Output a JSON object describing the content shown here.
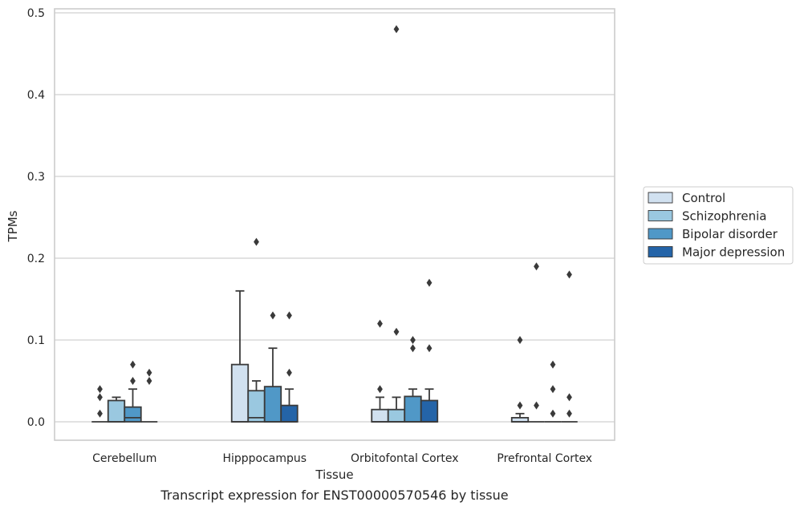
{
  "chart_data": {
    "type": "box",
    "caption": "Transcript expression for ENST00000570546 by tissue",
    "xlabel": "Tissue",
    "ylabel": "TPMs",
    "ylim": [
      -0.023,
      0.505
    ],
    "yticks": [
      0.0,
      0.1,
      0.2,
      0.3,
      0.4,
      0.5
    ],
    "ytick_labels": [
      "0.0",
      "0.1",
      "0.2",
      "0.3",
      "0.4",
      "0.5"
    ],
    "grid": "horizontal",
    "legend_position": "right",
    "categories": [
      "Cerebellum",
      "Hipppocampus",
      "Orbitofontal Cortex",
      "Prefrontal Cortex"
    ],
    "series": [
      {
        "name": "Control",
        "color": "#d1e1f0",
        "boxes": [
          {
            "q1": 0,
            "median": 0,
            "q3": 0,
            "whisker_low": 0,
            "whisker_high": 0,
            "outliers": [
              0.01,
              0.03,
              0.04
            ]
          },
          {
            "q1": 0,
            "median": 0,
            "q3": 0.07,
            "whisker_low": 0,
            "whisker_high": 0.16,
            "outliers": []
          },
          {
            "q1": 0,
            "median": 0,
            "q3": 0.015,
            "whisker_low": 0,
            "whisker_high": 0.03,
            "outliers": [
              0.04,
              0.12
            ]
          },
          {
            "q1": 0,
            "median": 0,
            "q3": 0.005,
            "whisker_low": 0,
            "whisker_high": 0.01,
            "outliers": [
              0.02,
              0.1
            ]
          }
        ]
      },
      {
        "name": "Schizophrenia",
        "color": "#9ac8e0",
        "boxes": [
          {
            "q1": 0,
            "median": 0,
            "q3": 0.026,
            "whisker_low": 0,
            "whisker_high": 0.03,
            "outliers": []
          },
          {
            "q1": 0,
            "median": 0.005,
            "q3": 0.038,
            "whisker_low": 0,
            "whisker_high": 0.05,
            "outliers": [
              0.22
            ]
          },
          {
            "q1": 0,
            "median": 0,
            "q3": 0.015,
            "whisker_low": 0,
            "whisker_high": 0.03,
            "outliers": [
              0.11,
              0.48
            ]
          },
          {
            "q1": 0,
            "median": 0,
            "q3": 0,
            "whisker_low": 0,
            "whisker_high": 0,
            "outliers": [
              0.02,
              0.19
            ]
          }
        ]
      },
      {
        "name": "Bipolar disorder",
        "color": "#5098c7",
        "boxes": [
          {
            "q1": 0,
            "median": 0.005,
            "q3": 0.018,
            "whisker_low": 0,
            "whisker_high": 0.04,
            "outliers": [
              0.05,
              0.07
            ]
          },
          {
            "q1": 0,
            "median": 0,
            "q3": 0.043,
            "whisker_low": 0,
            "whisker_high": 0.09,
            "outliers": [
              0.13
            ]
          },
          {
            "q1": 0,
            "median": 0,
            "q3": 0.031,
            "whisker_low": 0,
            "whisker_high": 0.04,
            "outliers": [
              0.09,
              0.1
            ]
          },
          {
            "q1": 0,
            "median": 0,
            "q3": 0,
            "whisker_low": 0,
            "whisker_high": 0,
            "outliers": [
              0.01,
              0.04,
              0.07
            ]
          }
        ]
      },
      {
        "name": "Major depression",
        "color": "#2464a8",
        "boxes": [
          {
            "q1": 0,
            "median": 0,
            "q3": 0,
            "whisker_low": 0,
            "whisker_high": 0,
            "outliers": [
              0.05,
              0.06
            ]
          },
          {
            "q1": 0,
            "median": 0,
            "q3": 0.02,
            "whisker_low": 0,
            "whisker_high": 0.04,
            "outliers": [
              0.06,
              0.13
            ]
          },
          {
            "q1": 0,
            "median": 0,
            "q3": 0.026,
            "whisker_low": 0,
            "whisker_high": 0.04,
            "outliers": [
              0.09,
              0.17
            ]
          },
          {
            "q1": 0,
            "median": 0,
            "q3": 0,
            "whisker_low": 0,
            "whisker_high": 0,
            "outliers": [
              0.01,
              0.03,
              0.18
            ]
          }
        ]
      }
    ]
  }
}
